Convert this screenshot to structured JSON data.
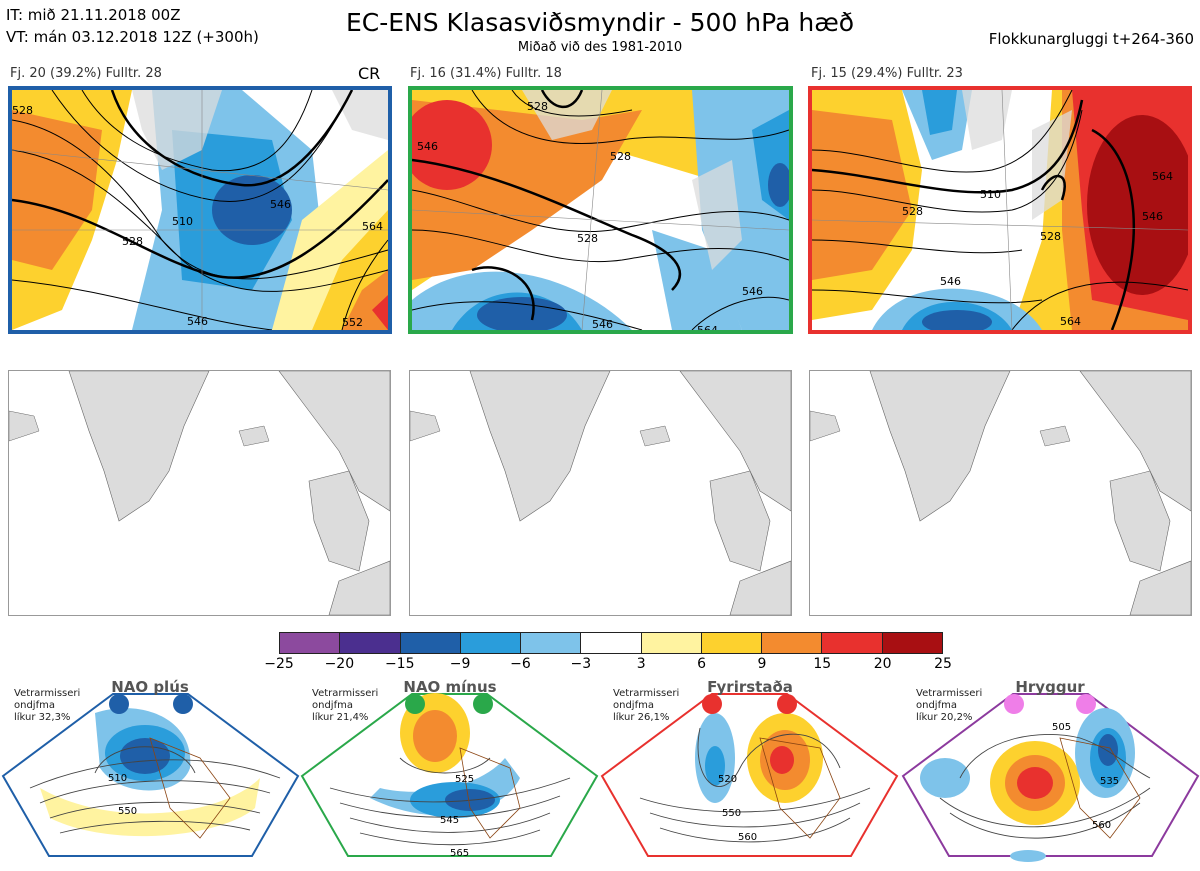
{
  "header": {
    "line1": "IT: mið 21.11.2018 00Z",
    "line2": "VT: mán 03.12.2018 12Z  (+300h)",
    "title": "EC-ENS Klasasviðsmyndir - 500 hPa hæð",
    "subtitle": "Miðað við des 1981-2010",
    "right": "Flokkunargluggi t+264-360"
  },
  "clusters": [
    {
      "label": "Fj. 20 (39.2%)   Fulltr. 28",
      "tag": "CR",
      "color": "#1f5fa8",
      "contours": [
        "510",
        "528",
        "528",
        "546",
        "546",
        "564",
        "552"
      ]
    },
    {
      "label": "Fj. 16 (31.4%)   Fulltr. 18",
      "tag": "",
      "color": "#2aa84a",
      "contours": [
        "528",
        "528",
        "528",
        "546",
        "546",
        "546",
        "564"
      ]
    },
    {
      "label": "Fj. 15 (29.4%)   Fulltr. 23",
      "tag": "",
      "color": "#e8312e",
      "contours": [
        "510",
        "528",
        "528",
        "546",
        "564",
        "564",
        "546"
      ]
    }
  ],
  "colorbar": {
    "colors": [
      "#8c4a9e",
      "#4b2f8f",
      "#1f5fa8",
      "#2a9ddb",
      "#7ec3ea",
      "#ffffff",
      "#fff3a0",
      "#fdd12e",
      "#f38b2f",
      "#e8312e",
      "#a80f12"
    ],
    "ticks": [
      "−25",
      "−20",
      "−15",
      "−9",
      "−6",
      "−3",
      "3",
      "6",
      "9",
      "15",
      "20",
      "25"
    ]
  },
  "regimes": [
    {
      "title": "NAO plús",
      "note1": "Vetrarmisseri",
      "note2": "ondjfma",
      "note3": "líkur 32,3%",
      "dot": "#1f5fa8",
      "border": "#1f5fa8",
      "c1": "510",
      "c2": "550"
    },
    {
      "title": "NAO mínus",
      "note1": "Vetrarmisseri",
      "note2": "ondjfma",
      "note3": "líkur 21,4%",
      "dot": "#2aa84a",
      "border": "#2aa84a",
      "c1": "525",
      "c2": "545",
      "c3": "565"
    },
    {
      "title": "Fyrirstaða",
      "note1": "Vetrarmisseri",
      "note2": "ondjfma",
      "note3": "líkur 26,1%",
      "dot": "#e8312e",
      "border": "#e8312e",
      "c1": "520",
      "c2": "550",
      "c3": "560"
    },
    {
      "title": "Hryggur",
      "note1": "Vetrarmisseri",
      "note2": "ondjfma",
      "note3": "líkur 20,2%",
      "dot": "#ef7ee8",
      "border": "#8c3a9e",
      "c1": "505",
      "c2": "535",
      "c3": "560"
    }
  ]
}
